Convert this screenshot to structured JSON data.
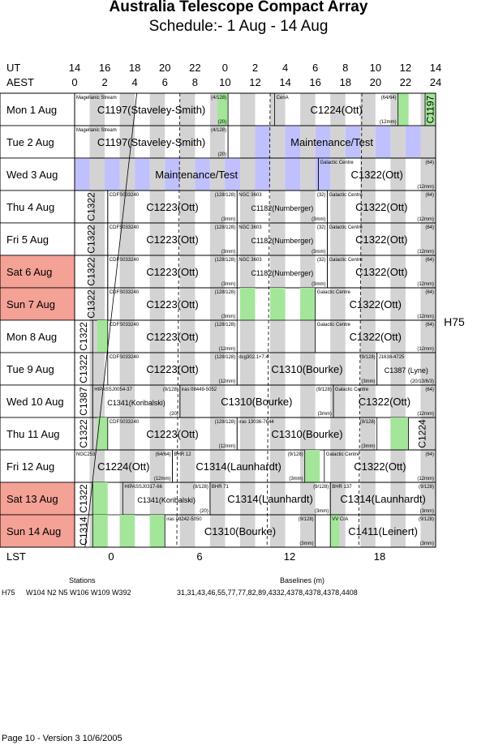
{
  "header": {
    "title": "Australia Telescope Compact Array",
    "subtitle": "Schedule:- 1  Aug - 14 Aug"
  },
  "axes": {
    "ut_label": "UT",
    "aest_label": "AEST",
    "lst_label": "LST",
    "ut_ticks": [
      "14",
      "16",
      "18",
      "20",
      "22",
      "0",
      "2",
      "4",
      "6",
      "8",
      "10",
      "12",
      "14"
    ],
    "aest_ticks": [
      "0",
      "2",
      "4",
      "6",
      "8",
      "10",
      "12",
      "14",
      "16",
      "18",
      "20",
      "22",
      "24"
    ],
    "lst_ticks": [
      "0",
      "6",
      "12",
      "18"
    ]
  },
  "config_label": "H75",
  "colors": {
    "weekend": "#f4a196",
    "maintenance": "#c0c0ff",
    "green": "#a3e69a",
    "gray": "#d3d3d3"
  },
  "days": [
    {
      "label": "Mon   1  Aug",
      "weekend": false,
      "blocks": [
        {
          "s": 0,
          "e": 10.2,
          "name": "C1197(Staveley-Smith)",
          "src": "Magellanic Stream",
          "tr": "(4/128)",
          "br": "(20)"
        },
        {
          "s": 13.3,
          "e": 21.5,
          "name": "C1224(Ott)",
          "src": "CenA",
          "tr": "(64/64)",
          "br": "(12mm)"
        },
        {
          "s": 23.3,
          "e": 24,
          "name": "C1197",
          "vert": true
        }
      ],
      "green": [
        [
          9.5,
          10.2
        ],
        [
          21.5,
          22.2
        ],
        [
          23.3,
          24
        ]
      ]
    },
    {
      "label": "Tue   2  Aug",
      "weekend": false,
      "blocks": [
        {
          "s": 0,
          "e": 10.2,
          "name": "C1197(Staveley-Smith)",
          "src": "Magellanic Stream",
          "tr": "(4/128)",
          "br": "(20)"
        },
        {
          "s": 10.2,
          "e": 24,
          "name": "Maintenance/Test",
          "maint": true
        }
      ]
    },
    {
      "label": "Wed   3  Aug",
      "weekend": false,
      "blocks": [
        {
          "s": 0,
          "e": 16.2,
          "name": "Maintenance/Test",
          "maint": true
        },
        {
          "s": 16.2,
          "e": 24,
          "name": "C1322(Ott)",
          "src": "Galactic Centre",
          "tr": "(64)",
          "br": "(12mm)"
        }
      ]
    },
    {
      "label": "Thu   4  Aug",
      "weekend": false,
      "blocks": [
        {
          "s": 0,
          "e": 2.2,
          "name": "C1322",
          "vert": true
        },
        {
          "s": 2.2,
          "e": 10.8,
          "name": "C1223(Ott)",
          "src": "CDFS033240",
          "tr": "(128/128)",
          "br": "(3mm)"
        },
        {
          "s": 10.8,
          "e": 16.8,
          "name": "C1182(Numberger)",
          "src": "NGC 3603",
          "tr": "(32)",
          "br": "(3mm)",
          "small": true
        },
        {
          "s": 16.8,
          "e": 24,
          "name": "C1322(Ott)",
          "src": "Galactic Centre",
          "tr": "(64)",
          "br": "(12mm)"
        }
      ]
    },
    {
      "label": "Fri    5  Aug",
      "weekend": false,
      "blocks": [
        {
          "s": 0,
          "e": 2.2,
          "name": "C1322",
          "vert": true
        },
        {
          "s": 2.2,
          "e": 10.8,
          "name": "C1223(Ott)",
          "src": "CDFS033240",
          "tr": "(128/128)",
          "br": "(3mm)"
        },
        {
          "s": 10.8,
          "e": 16.8,
          "name": "C1182(Numberger)",
          "src": "NGC 3603",
          "tr": "(32)",
          "br": "(3mm)",
          "small": true
        },
        {
          "s": 16.8,
          "e": 24,
          "name": "C1322(Ott)",
          "src": "Galactic Centre",
          "tr": "(64)",
          "br": "(12mm)"
        }
      ]
    },
    {
      "label": "Sat   6  Aug",
      "weekend": true,
      "blocks": [
        {
          "s": 0,
          "e": 2.2,
          "name": "C1322",
          "vert": true
        },
        {
          "s": 2.2,
          "e": 10.8,
          "name": "C1223(Ott)",
          "src": "CDFS033240",
          "tr": "(128/128)",
          "br": "(3mm)"
        },
        {
          "s": 10.8,
          "e": 16.8,
          "name": "C1182(Numberger)",
          "src": "NGC 3603",
          "tr": "(32)",
          "br": "(3mm)",
          "small": true
        },
        {
          "s": 16.8,
          "e": 24,
          "name": "C1322(Ott)",
          "src": "Galactic Centre",
          "tr": "(64)",
          "br": "(12mm)"
        }
      ]
    },
    {
      "label": "Sun   7  Aug",
      "weekend": true,
      "blocks": [
        {
          "s": 0,
          "e": 2.2,
          "name": "C1322",
          "vert": true
        },
        {
          "s": 2.2,
          "e": 10.8,
          "name": "C1223(Ott)",
          "src": "CDFS033240",
          "tr": "(128/128)",
          "br": "(3mm)"
        },
        {
          "s": 16.0,
          "e": 24,
          "name": "C1322(Ott)",
          "src": "Galactic Centre",
          "tr": "(64)",
          "br": "(12mm)"
        }
      ],
      "green": [
        [
          11.0,
          12.0
        ],
        [
          13.0,
          14.0
        ],
        [
          15.0,
          16.0
        ]
      ]
    },
    {
      "label": "Mon   8  Aug",
      "weekend": false,
      "blocks": [
        {
          "s": 0,
          "e": 1.2,
          "name": "C1322",
          "vert": true
        },
        {
          "s": 2.2,
          "e": 10.8,
          "name": "C1223(Ott)",
          "src": "CDFS033240",
          "tr": "(128/128)",
          "br": "(12mm)"
        },
        {
          "s": 16.0,
          "e": 24,
          "name": "C1322(Ott)",
          "src": "Galactic Centre",
          "tr": "(64)",
          "br": "(12mm)"
        }
      ],
      "green": [
        [
          1.5,
          2.2
        ]
      ]
    },
    {
      "label": "Tue   9  Aug",
      "weekend": false,
      "blocks": [
        {
          "s": 0,
          "e": 1.2,
          "name": "C1322",
          "vert": true
        },
        {
          "s": 2.2,
          "e": 10.8,
          "name": "C1223(Ott)",
          "src": "CDFS033240",
          "tr": "(128/128)",
          "br": "(12mm)"
        },
        {
          "s": 10.8,
          "e": 20.1,
          "name": "C1310(Bourke)",
          "src": "dcg302.1+7.4",
          "tr": "(9/128)",
          "br": "(3mm)"
        },
        {
          "s": 20.1,
          "e": 24,
          "name": "C1387 (Lyne)",
          "src": "J1638-4725",
          "br": "(20/13/6/3)",
          "small": true
        }
      ]
    },
    {
      "label": "Wed 10 Aug",
      "weekend": false,
      "blocks": [
        {
          "s": 0,
          "e": 1.2,
          "name": "C1387",
          "vert": true
        },
        {
          "s": 1.2,
          "e": 7.0,
          "name": "C1341(Koribalski)",
          "src": "HIPASSJ0054-37",
          "tr": "(9/128)",
          "br": "(20)",
          "small": true
        },
        {
          "s": 7.0,
          "e": 17.2,
          "name": "C1310(Bourke)",
          "src": "iras 08449-5052",
          "tr": "(9/128)",
          "br": "(3mm)"
        },
        {
          "s": 17.2,
          "e": 24,
          "name": "C1322(Ott)",
          "src": "Galactic Centre",
          "tr": "(64)",
          "br": "(12mm)"
        }
      ]
    },
    {
      "label": "Thu  11  Aug",
      "weekend": false,
      "blocks": [
        {
          "s": 0,
          "e": 1.2,
          "name": "C1322",
          "vert": true
        },
        {
          "s": 2.2,
          "e": 10.8,
          "name": "C1223(Ott)",
          "src": "CDFS033240",
          "tr": "(128/128)",
          "br": "(12mm)"
        },
        {
          "s": 10.8,
          "e": 20.1,
          "name": "C1310(Bourke)",
          "src": "iras 13036-7644",
          "tr": "(9/128)",
          "br": "(3mm)"
        },
        {
          "s": 22.2,
          "e": 24,
          "name": "C1224",
          "vert": true
        }
      ],
      "green": [
        [
          1.5,
          2.2
        ],
        [
          21.0,
          22.2
        ]
      ]
    },
    {
      "label": "Fri   12  Aug",
      "weekend": false,
      "blocks": [
        {
          "s": 0,
          "e": 6.5,
          "name": "C1224(Ott)",
          "src": "NGC253",
          "tr": "(64/64)",
          "br": "(12mm)"
        },
        {
          "s": 6.5,
          "e": 15.3,
          "name": "C1314(Launhardt)",
          "src": "BHR 12",
          "tr": "(9/128)",
          "br": "(3mm)"
        },
        {
          "s": 16.6,
          "e": 24,
          "name": "C1322(Ott)",
          "src": "Galactic Centre",
          "tr": "(64)",
          "br": "(12mm)"
        }
      ],
      "green": [
        [
          15.3,
          16.3
        ]
      ]
    },
    {
      "label": "Sat  13  Aug",
      "weekend": true,
      "blocks": [
        {
          "s": 0,
          "e": 1.2,
          "name": "C1322",
          "vert": true
        },
        {
          "s": 3.2,
          "e": 9.0,
          "name": "C1341(Koribalski)",
          "src": "HIPASSJ0317-66",
          "tr": "(9/128)",
          "br": "(20)",
          "small": true
        },
        {
          "s": 9.0,
          "e": 17.0,
          "name": "C1314(Launhardt)",
          "src": "BHR 71",
          "tr": "(9/128)",
          "br": "(3mm)"
        },
        {
          "s": 17.0,
          "e": 24,
          "name": "C1314(Launhardt)",
          "src": "BHR 137",
          "tr": "(9/128)",
          "br": "(3mm)"
        }
      ],
      "green": [
        [
          1.2,
          2.2
        ]
      ]
    },
    {
      "label": "Sun  14  Aug",
      "weekend": true,
      "blocks": [
        {
          "s": 0,
          "e": 1.2,
          "name": "C1314",
          "vert": true
        },
        {
          "s": 6.0,
          "e": 16.0,
          "name": "C1310(Bourke)",
          "src": "iras 08242-5050",
          "tr": "(9/128)",
          "br": "(3mm)"
        },
        {
          "s": 17.0,
          "e": 24,
          "name": "C1411(Leinert)",
          "src": "VV CrA",
          "tr": "(9/128)",
          "br": "(3mm)"
        }
      ],
      "green": [
        [
          1.2,
          2.2
        ],
        [
          3.0,
          4.0
        ],
        [
          5.0,
          6.0
        ],
        [
          17.0,
          17.6
        ]
      ]
    }
  ],
  "footer": {
    "stations_title": "Stations",
    "baselines_title": "Baselines (m)",
    "config": "H75",
    "stations": "W104  N2  N5  W106  W109  W392",
    "baselines": "31,31,43,46,55,77,77,82,89,4332,4378,4378,4378,4408",
    "page": "Page 10 - Version 3  10/6/2005"
  }
}
